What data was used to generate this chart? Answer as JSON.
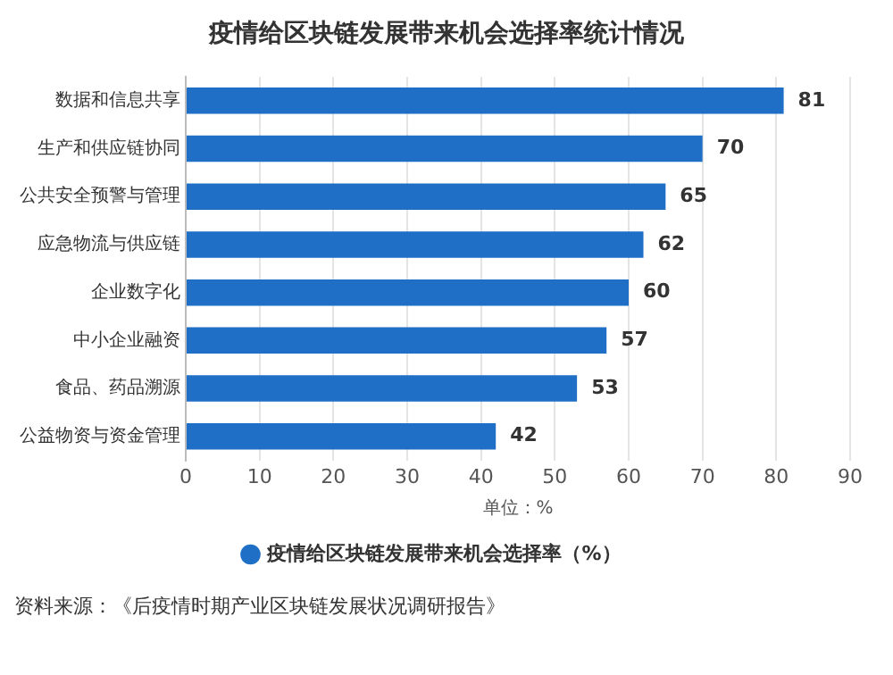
{
  "chart_data": {
    "type": "bar",
    "orientation": "horizontal",
    "title": "疫情给区块链发展带来机会选择率统计情况",
    "categories": [
      "数据和信息共享",
      "生产和供应链协同",
      "公共安全预警与管理",
      "应急物流与供应链",
      "企业数字化",
      "中小企业融资",
      "食品、药品溯源",
      "公益物资与资金管理"
    ],
    "series": [
      {
        "name": "疫情给区块链发展带来机会选择率（%）",
        "color": "#1f6fc6",
        "values": [
          81,
          70,
          65,
          62,
          60,
          57,
          53,
          42
        ]
      }
    ],
    "xlim": [
      0,
      90
    ],
    "xticks": [
      0,
      10,
      20,
      30,
      40,
      50,
      60,
      70,
      80,
      90
    ],
    "xlabel": "单位：%",
    "grid": "x",
    "legend": "bottom",
    "data_labels": true,
    "annotations": [
      "资料来源：《后疫情时期产业区块链发展状况调研报告》"
    ]
  }
}
